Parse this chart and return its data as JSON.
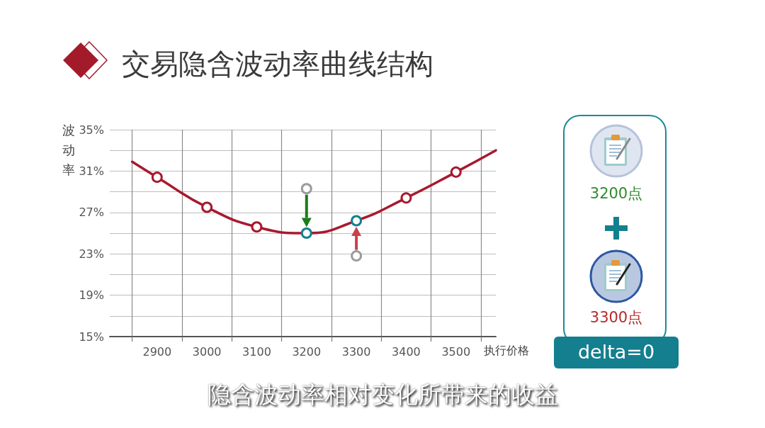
{
  "chart_data": [
    {
      "type": "line",
      "title": "交易隐含波动率曲线结构",
      "xlabel": "执行价格",
      "ylabel": "波动率",
      "annotations": [
        "隐含波动率相对变化所带来的收益"
      ],
      "series": [
        {
          "type": "line",
          "color": "#a8192e",
          "marker": "none",
          "x": [
            2850,
            2900,
            3000,
            3100,
            3200,
            3300,
            3400,
            3500,
            3580
          ],
          "values": [
            31.9,
            30.4,
            27.5,
            25.6,
            25.0,
            26.2,
            28.4,
            30.9,
            33.0
          ]
        },
        {
          "type": "scatter",
          "marker": "circle",
          "colors": [
            "#a8192e",
            "#a8192e",
            "#a8192e",
            "#13808f",
            "#13808f",
            "#a8192e",
            "#a8192e"
          ],
          "x": [
            2900,
            3000,
            3100,
            3200,
            3300,
            3400,
            3500
          ],
          "values": [
            30.4,
            27.5,
            25.6,
            25.0,
            26.2,
            28.4,
            30.9
          ]
        },
        {
          "type": "scatter",
          "marker": "circle",
          "color": "#9b9b9b",
          "x": [
            3200,
            3300
          ],
          "values": [
            29.3,
            22.8
          ]
        }
      ],
      "xlim": [
        2805,
        3580
      ],
      "xticks": [
        {
          "value": 2850,
          "label": null
        },
        2900,
        {
          "value": 2950,
          "label": null
        },
        3000,
        {
          "value": 3050,
          "label": null
        },
        3100,
        {
          "value": 3150,
          "label": null
        },
        3200,
        {
          "value": 3250,
          "label": null
        },
        3300,
        {
          "value": 3350,
          "label": null
        },
        3400,
        {
          "value": 3450,
          "label": null
        },
        3500,
        {
          "value": 3550,
          "label": null
        }
      ],
      "ylim": [
        15,
        35
      ],
      "yticks": [
        {
          "value": 15,
          "label": "15%"
        },
        {
          "value": 17,
          "label": null
        },
        {
          "value": 19,
          "label": "19%"
        },
        {
          "value": 21,
          "label": null
        },
        {
          "value": 23,
          "label": "23%"
        },
        {
          "value": 25,
          "label": null
        },
        {
          "value": 27,
          "label": "27%"
        },
        {
          "value": 29,
          "label": null
        },
        {
          "value": 31,
          "label": "31%"
        },
        {
          "value": 33,
          "label": null
        },
        {
          "value": 35,
          "label": "35%"
        }
      ],
      "grid": true
    },
    {
      "type": "other",
      "annotations": [
        "3200点",
        "3300点",
        "delta=0"
      ]
    }
  ]
}
